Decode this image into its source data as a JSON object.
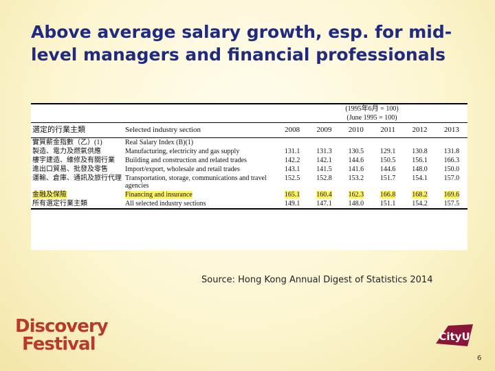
{
  "title": "Above average salary growth, esp. for mid-level managers and financial professionals",
  "table": {
    "note": [
      "(1995年6月 = 100)",
      "(June 1995 = 100)"
    ],
    "header": [
      "選定的行業主類",
      "Selected industry section",
      "2008",
      "2009",
      "2010",
      "2011",
      "2012",
      "2013"
    ],
    "rows": [
      {
        "zh": "實質薪金指數（乙）(1)",
        "en": "Real Salary Index (B)(1)",
        "values": []
      },
      {
        "zh": "製造、電力及燃氣供應",
        "en": "Manufacturing, electricity and gas supply",
        "values": [
          "131.1",
          "131.3",
          "130.5",
          "129.1",
          "130.8",
          "131.8"
        ]
      },
      {
        "zh": "樓宇建造、維修及有關行業",
        "en": "Building and construction and related trades",
        "values": [
          "142.2",
          "142.1",
          "144.6",
          "150.5",
          "156.1",
          "166.3"
        ]
      },
      {
        "zh": "進出口貿易、批發及零售",
        "en": "Import/export, wholesale and retail trades",
        "values": [
          "143.1",
          "141.5",
          "141.6",
          "144.6",
          "148.0",
          "150.0"
        ]
      },
      {
        "zh": "運輸、倉庫、通訊及旅行代理",
        "en": "Transportation, storage, communications and travel agencies",
        "values": [
          "152.5",
          "152.8",
          "153.2",
          "151.7",
          "154.1",
          "157.0"
        ]
      },
      {
        "zh": "金融及保險",
        "en": "Financing and insurance",
        "values": [
          "165.1",
          "160.4",
          "162.3",
          "166.8",
          "168.2",
          "169.6"
        ],
        "highlight": true
      },
      {
        "zh": "所有選定行業主類",
        "en": "All selected industry sections",
        "values": [
          "149.1",
          "147.1",
          "148.0",
          "151.1",
          "154.2",
          "157.5"
        ]
      }
    ]
  },
  "source": "Source: Hong Kong Annual Digest of Statistics 2014",
  "logos": {
    "discovery": [
      "Discovery",
      "Festival"
    ],
    "cityu": "CityU"
  },
  "page_number": "6"
}
